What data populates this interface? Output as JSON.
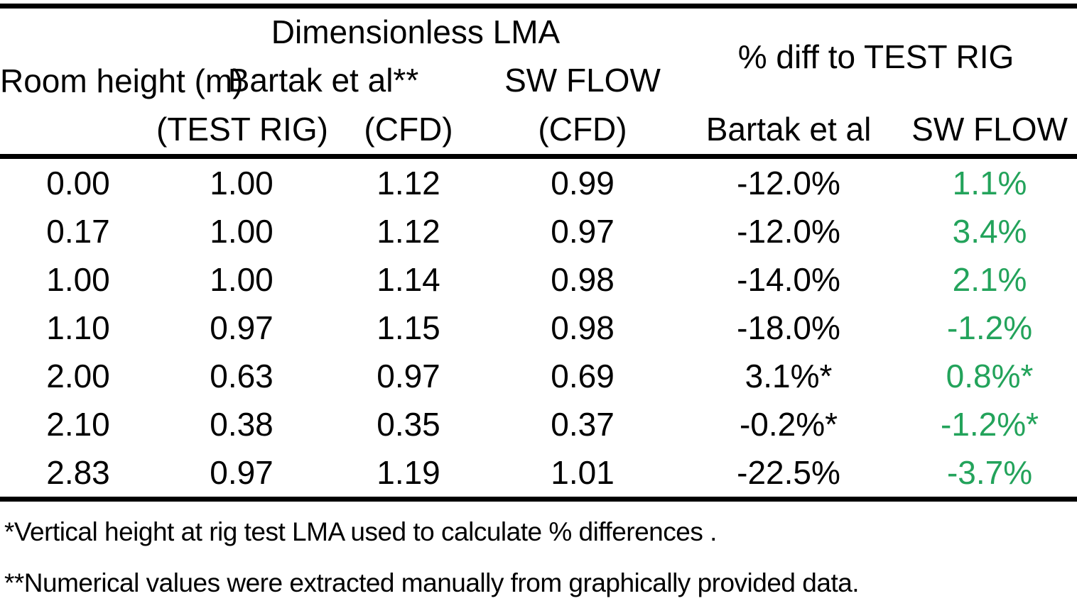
{
  "colors": {
    "text": "#000000",
    "positive_green": "#23a35b",
    "rule": "#000000",
    "background": "#ffffff"
  },
  "table": {
    "header": {
      "room_height": "Room\nheight\n(m)",
      "dimensionless_lma": "Dimensionless LMA",
      "pct_diff_group": "% diff to TEST RIG",
      "bartak_group": "Bartak et al**",
      "sw_flow_group": "SW FLOW",
      "sub_test_rig": "(TEST RIG)",
      "sub_cfd_bartak": "(CFD)",
      "sub_cfd_sw": "(CFD)",
      "sub_diff_bartak": "Bartak et al",
      "sub_diff_sw": "SW FLOW"
    },
    "rows": [
      {
        "room_height": "0.00",
        "bartak_test_rig": "1.00",
        "bartak_cfd": "1.12",
        "sw_flow_cfd": "0.99",
        "diff_bartak": "-12.0%",
        "diff_sw_flow": "1.1%"
      },
      {
        "room_height": "0.17",
        "bartak_test_rig": "1.00",
        "bartak_cfd": "1.12",
        "sw_flow_cfd": "0.97",
        "diff_bartak": "-12.0%",
        "diff_sw_flow": "3.4%"
      },
      {
        "room_height": "1.00",
        "bartak_test_rig": "1.00",
        "bartak_cfd": "1.14",
        "sw_flow_cfd": "0.98",
        "diff_bartak": "-14.0%",
        "diff_sw_flow": "2.1%"
      },
      {
        "room_height": "1.10",
        "bartak_test_rig": "0.97",
        "bartak_cfd": "1.15",
        "sw_flow_cfd": "0.98",
        "diff_bartak": "-18.0%",
        "diff_sw_flow": "-1.2%"
      },
      {
        "room_height": "2.00",
        "bartak_test_rig": "0.63",
        "bartak_cfd": "0.97",
        "sw_flow_cfd": "0.69",
        "diff_bartak": "3.1%*",
        "diff_sw_flow": "0.8%*"
      },
      {
        "room_height": "2.10",
        "bartak_test_rig": "0.38",
        "bartak_cfd": "0.35",
        "sw_flow_cfd": "0.37",
        "diff_bartak": "-0.2%*",
        "diff_sw_flow": "-1.2%*"
      },
      {
        "room_height": "2.83",
        "bartak_test_rig": "0.97",
        "bartak_cfd": "1.19",
        "sw_flow_cfd": "1.01",
        "diff_bartak": "-22.5%",
        "diff_sw_flow": "-3.7%"
      }
    ]
  },
  "footnotes": {
    "note1": "*Vertical height at rig test LMA used to calculate % differences .",
    "note2": "**Numerical values were extracted manually from graphically provided data."
  },
  "chart_data": {
    "type": "table",
    "title": "",
    "column_groups": [
      {
        "label": "Room height (m)",
        "span": 1
      },
      {
        "label": "Dimensionless LMA",
        "span": 3
      },
      {
        "label": "% diff to TEST RIG",
        "span": 2
      }
    ],
    "columns": [
      "Room height (m)",
      "Bartak et al** (TEST RIG)",
      "Bartak et al** (CFD)",
      "SW FLOW (CFD)",
      "% diff to TEST RIG — Bartak et al",
      "% diff to TEST RIG — SW FLOW"
    ],
    "rows": [
      [
        "0.00",
        "1.00",
        "1.12",
        "0.99",
        "-12.0%",
        "1.1%"
      ],
      [
        "0.17",
        "1.00",
        "1.12",
        "0.97",
        "-12.0%",
        "3.4%"
      ],
      [
        "1.00",
        "1.00",
        "1.14",
        "0.98",
        "-14.0%",
        "2.1%"
      ],
      [
        "1.10",
        "0.97",
        "1.15",
        "0.98",
        "-18.0%",
        "-1.2%"
      ],
      [
        "2.00",
        "0.63",
        "0.97",
        "0.69",
        "3.1%*",
        "0.8%*"
      ],
      [
        "2.10",
        "0.38",
        "0.35",
        "0.37",
        "-0.2%*",
        "-1.2%*"
      ],
      [
        "2.83",
        "0.97",
        "1.19",
        "1.01",
        "-22.5%",
        "-3.7%"
      ]
    ],
    "sw_flow_diff_color": "#23a35b",
    "footnotes": [
      "*Vertical height at rig test LMA used to calculate % differences .",
      "**Numerical values were extracted manually from graphically provided data."
    ],
    "layout": {
      "grid": "horizontal rules only (top, under header, under body)",
      "legend": "none"
    }
  }
}
